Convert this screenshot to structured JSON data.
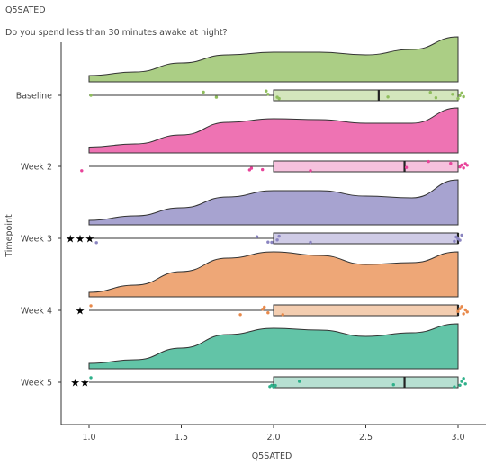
{
  "title": "Q5SATED",
  "subtitle": "Do you spend less than 30 minutes awake at night?",
  "chart_data": {
    "type": "raincloud",
    "xlabel": "Q5SATED",
    "ylabel": "Timepoint",
    "xlim": [
      0.85,
      3.15
    ],
    "xticks": [
      "1.0",
      "1.5",
      "2.0",
      "2.5",
      "3.0"
    ],
    "xtick_values": [
      1.0,
      1.5,
      2.0,
      2.5,
      3.0
    ],
    "grid": false,
    "legend": "none",
    "categories": [
      "Baseline",
      "Week 2",
      "Week 3",
      "Week 4",
      "Week 5"
    ],
    "groups": [
      {
        "name": "Baseline",
        "color": "#8fbd5c",
        "box_fill": "#d4e6bd",
        "significance": "",
        "density": [
          [
            1.0,
            0.14
          ],
          [
            1.25,
            0.22
          ],
          [
            1.5,
            0.42
          ],
          [
            1.75,
            0.6
          ],
          [
            2.0,
            0.66
          ],
          [
            2.25,
            0.66
          ],
          [
            2.5,
            0.6
          ],
          [
            2.75,
            0.72
          ],
          [
            3.0,
            1.0
          ]
        ],
        "box": {
          "min": 1.0,
          "q1": 2.0,
          "median": 2.57,
          "q3": 3.0,
          "max": 3.0
        },
        "points": [
          [
            1.01,
            0.0
          ],
          [
            1.62,
            -0.6
          ],
          [
            1.69,
            0.35
          ],
          [
            1.96,
            -0.8
          ],
          [
            1.97,
            -0.2
          ],
          [
            2.02,
            0.35
          ],
          [
            2.03,
            0.6
          ],
          [
            2.62,
            0.3
          ],
          [
            2.85,
            -0.55
          ],
          [
            2.88,
            0.45
          ],
          [
            2.97,
            -0.2
          ],
          [
            3.0,
            0.6
          ],
          [
            3.01,
            0.05
          ],
          [
            3.02,
            -0.45
          ],
          [
            3.03,
            0.25
          ]
        ]
      },
      {
        "name": "Week 2",
        "color": "#e8449a",
        "box_fill": "#f6c1dd",
        "significance": "",
        "density": [
          [
            1.0,
            0.13
          ],
          [
            1.25,
            0.2
          ],
          [
            1.5,
            0.4
          ],
          [
            1.75,
            0.68
          ],
          [
            2.0,
            0.76
          ],
          [
            2.25,
            0.74
          ],
          [
            2.5,
            0.66
          ],
          [
            2.75,
            0.66
          ],
          [
            3.0,
            1.0
          ]
        ],
        "box": {
          "min": 1.0,
          "q1": 2.0,
          "median": 2.71,
          "q3": 3.0,
          "max": 3.0
        },
        "points": [
          [
            0.96,
            0.8
          ],
          [
            1.87,
            0.65
          ],
          [
            1.88,
            0.35
          ],
          [
            1.94,
            0.6
          ],
          [
            2.2,
            0.8
          ],
          [
            2.72,
            0.2
          ],
          [
            2.84,
            -0.9
          ],
          [
            2.96,
            -0.55
          ],
          [
            3.01,
            0.1
          ],
          [
            3.02,
            -0.25
          ],
          [
            3.03,
            0.3
          ],
          [
            3.04,
            -0.5
          ],
          [
            3.05,
            -0.2
          ]
        ]
      },
      {
        "name": "Week 3",
        "color": "#8a84c0",
        "box_fill": "#cfcbe6",
        "significance": "★★★",
        "density": [
          [
            1.0,
            0.1
          ],
          [
            1.25,
            0.2
          ],
          [
            1.5,
            0.38
          ],
          [
            1.75,
            0.62
          ],
          [
            2.0,
            0.76
          ],
          [
            2.25,
            0.76
          ],
          [
            2.5,
            0.64
          ],
          [
            2.75,
            0.6
          ],
          [
            3.0,
            1.0
          ]
        ],
        "box": {
          "min": 1.0,
          "q1": 2.0,
          "median": 3.0,
          "q3": 3.0,
          "max": 3.0
        },
        "points": [
          [
            1.04,
            0.8
          ],
          [
            1.91,
            -0.3
          ],
          [
            1.97,
            0.7
          ],
          [
            1.99,
            0.75
          ],
          [
            2.02,
            0.3
          ],
          [
            2.03,
            -0.4
          ],
          [
            2.2,
            0.75
          ],
          [
            2.98,
            0.55
          ],
          [
            2.99,
            -0.25
          ],
          [
            3.0,
            0.1
          ],
          [
            3.01,
            0.35
          ],
          [
            3.02,
            -0.6
          ]
        ]
      },
      {
        "name": "Week 4",
        "color": "#e8894a",
        "box_fill": "#f3cdb0",
        "significance": "★",
        "density": [
          [
            1.0,
            0.1
          ],
          [
            1.25,
            0.26
          ],
          [
            1.5,
            0.56
          ],
          [
            1.75,
            0.86
          ],
          [
            2.0,
            1.0
          ],
          [
            2.25,
            0.92
          ],
          [
            2.5,
            0.72
          ],
          [
            2.75,
            0.76
          ],
          [
            3.0,
            1.0
          ]
        ],
        "box": {
          "min": 1.0,
          "q1": 2.0,
          "median": 3.0,
          "q3": 3.0,
          "max": 3.0
        },
        "points": [
          [
            1.01,
            -0.85
          ],
          [
            1.82,
            0.8
          ],
          [
            1.94,
            -0.2
          ],
          [
            1.95,
            -0.6
          ],
          [
            1.97,
            0.45
          ],
          [
            2.05,
            0.8
          ],
          [
            3.0,
            0.2
          ],
          [
            3.01,
            -0.3
          ],
          [
            3.02,
            -0.7
          ],
          [
            3.03,
            0.65
          ],
          [
            3.04,
            -0.1
          ],
          [
            3.05,
            0.3
          ]
        ]
      },
      {
        "name": "Week 5",
        "color": "#2eb08a",
        "box_fill": "#b7e0d2",
        "significance": "★★",
        "density": [
          [
            1.0,
            0.12
          ],
          [
            1.25,
            0.2
          ],
          [
            1.5,
            0.46
          ],
          [
            1.75,
            0.76
          ],
          [
            2.0,
            0.9
          ],
          [
            2.25,
            0.86
          ],
          [
            2.5,
            0.72
          ],
          [
            2.75,
            0.8
          ],
          [
            3.0,
            1.0
          ]
        ],
        "box": {
          "min": 1.0,
          "q1": 2.0,
          "median": 2.71,
          "q3": 3.0,
          "max": 3.0
        },
        "points": [
          [
            1.01,
            -0.85
          ],
          [
            1.98,
            0.8
          ],
          [
            1.99,
            0.55
          ],
          [
            2.0,
            0.85
          ],
          [
            2.01,
            0.6
          ],
          [
            2.14,
            -0.15
          ],
          [
            2.65,
            0.45
          ],
          [
            2.98,
            0.85
          ],
          [
            3.01,
            0.55
          ],
          [
            3.02,
            -0.15
          ],
          [
            3.03,
            -0.7
          ],
          [
            3.04,
            0.3
          ]
        ]
      }
    ]
  }
}
